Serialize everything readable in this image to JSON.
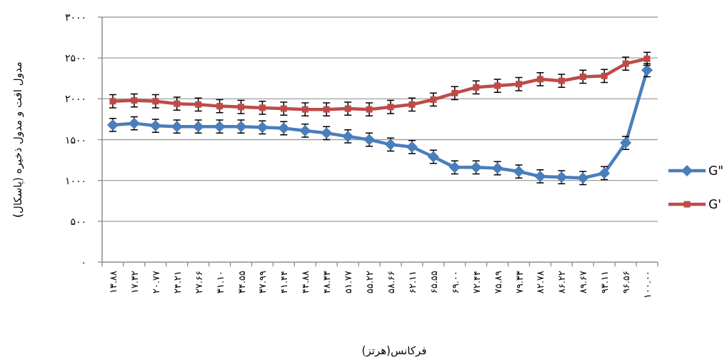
{
  "chart_data": {
    "type": "line",
    "xlabel": "فرکانس(هرتز)",
    "ylabel": "مدول افت و مدول ذخیره (پاسکال)",
    "categories": [
      "۱۳.۸۸",
      "۱۷.۳۲",
      "۲۰.۷۷",
      "۲۴.۲۱",
      "۲۷.۶۶",
      "۳۱.۱۰",
      "۳۴.۵۵",
      "۳۷.۹۹",
      "۴۱.۴۴",
      "۴۴.۸۸",
      "۴۸.۳۳",
      "۵۱.۷۷",
      "۵۵.۲۲",
      "۵۸.۶۶",
      "۶۲.۱۱",
      "۶۵.۵۵",
      "۶۹.۰۰",
      "۷۲.۴۴",
      "۷۵.۸۹",
      "۷۹.۳۳",
      "۸۲.۷۸",
      "۸۶.۲۲",
      "۸۹.۶۷",
      "۹۳.۱۱",
      "۹۶.۵۶",
      "۱۰۰.۰۰"
    ],
    "series": [
      {
        "name": "G\"",
        "color": "#4a7ebb",
        "marker": "diamond",
        "values": [
          1680,
          1700,
          1670,
          1660,
          1660,
          1660,
          1660,
          1650,
          1640,
          1610,
          1580,
          1540,
          1500,
          1440,
          1410,
          1290,
          1160,
          1160,
          1150,
          1110,
          1050,
          1040,
          1030,
          1090,
          1460,
          2350
        ],
        "errors": [
          80,
          80,
          80,
          80,
          80,
          80,
          80,
          80,
          80,
          80,
          80,
          80,
          80,
          80,
          80,
          80,
          80,
          80,
          80,
          80,
          80,
          80,
          80,
          80,
          80,
          80
        ]
      },
      {
        "name": "G'",
        "color": "#be4b48",
        "marker": "square",
        "values": [
          1970,
          1980,
          1970,
          1940,
          1930,
          1910,
          1900,
          1890,
          1880,
          1870,
          1870,
          1880,
          1870,
          1900,
          1930,
          1990,
          2070,
          2140,
          2160,
          2180,
          2240,
          2220,
          2270,
          2280,
          2430,
          2490
        ],
        "errors": [
          80,
          80,
          80,
          80,
          80,
          80,
          80,
          80,
          80,
          80,
          80,
          80,
          80,
          80,
          80,
          80,
          80,
          80,
          80,
          80,
          80,
          80,
          80,
          80,
          80,
          80
        ]
      }
    ],
    "ylim": [
      0,
      3000
    ],
    "yticks": [
      {
        "value": 0,
        "label": "۰"
      },
      {
        "value": 500,
        "label": "۵۰۰"
      },
      {
        "value": 1000,
        "label": "۱۰۰۰"
      },
      {
        "value": 1500,
        "label": "۱۵۰۰"
      },
      {
        "value": 2000,
        "label": "۲۰۰۰"
      },
      {
        "value": 2500,
        "label": "۲۵۰۰"
      },
      {
        "value": 3000,
        "label": "۳۰۰۰"
      }
    ],
    "grid": "y",
    "legend": "right"
  }
}
